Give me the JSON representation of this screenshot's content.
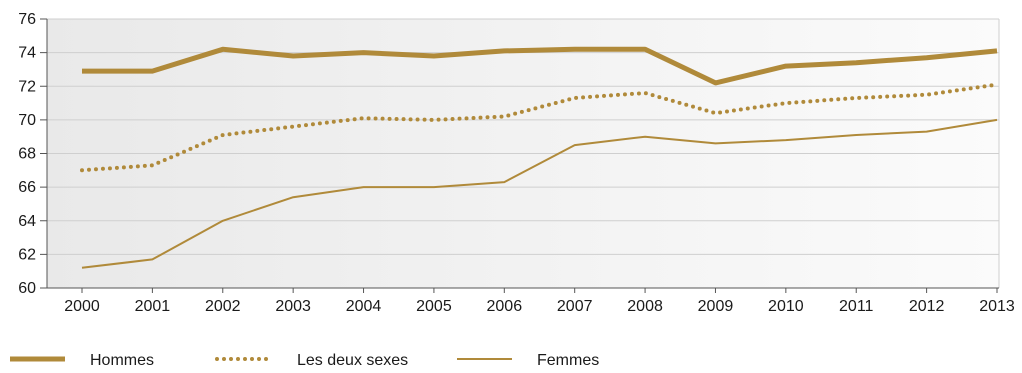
{
  "chart_data": {
    "type": "line",
    "title": "",
    "xlabel": "",
    "ylabel": "",
    "categories": [
      "2000",
      "2001",
      "2002",
      "2003",
      "2004",
      "2005",
      "2006",
      "2007",
      "2008",
      "2009",
      "2010",
      "2011",
      "2012",
      "2013"
    ],
    "ylim": [
      60,
      76
    ],
    "yticks": [
      "60",
      "62",
      "64",
      "66",
      "68",
      "70",
      "72",
      "74",
      "76"
    ],
    "grid": "horizontal",
    "legend_position": "bottom",
    "series_color": "#b08a3a",
    "series": [
      {
        "name": "Hommes",
        "style": "thick-solid",
        "values": [
          72.9,
          72.9,
          74.2,
          73.8,
          74.0,
          73.8,
          74.1,
          74.2,
          74.2,
          72.2,
          73.2,
          73.4,
          73.7,
          74.1
        ]
      },
      {
        "name": "Les deux sexes",
        "style": "dotted",
        "values": [
          67.0,
          67.3,
          69.1,
          69.6,
          70.1,
          70.0,
          70.2,
          71.3,
          71.6,
          70.4,
          71.0,
          71.3,
          71.5,
          72.1
        ]
      },
      {
        "name": "Femmes",
        "style": "thin-solid",
        "values": [
          61.2,
          61.7,
          64.0,
          65.4,
          66.0,
          66.0,
          66.3,
          68.5,
          69.0,
          68.6,
          68.8,
          69.1,
          69.3,
          70.0
        ]
      }
    ]
  }
}
